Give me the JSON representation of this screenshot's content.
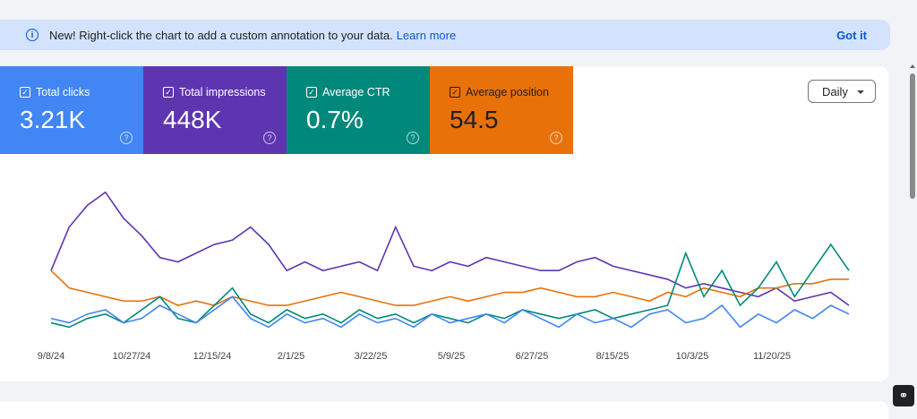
{
  "banner": {
    "icon": "info-icon",
    "text": "New! Right-click the chart to add a custom annotation to your data.",
    "link": "Learn more",
    "dismiss": "Got it"
  },
  "metrics": [
    {
      "label": "Total clicks",
      "value": "3.21K",
      "color": "#4285f4",
      "checked": true
    },
    {
      "label": "Total impressions",
      "value": "448K",
      "color": "#5e35b1",
      "checked": true
    },
    {
      "label": "Average CTR",
      "value": "0.7%",
      "color": "#00897b",
      "checked": true
    },
    {
      "label": "Average position",
      "value": "54.5",
      "color": "#e8710a",
      "checked": true
    }
  ],
  "granularity": {
    "selected": "Daily"
  },
  "chart_data": {
    "type": "line",
    "x_ticks": [
      "9/8/24",
      "10/27/24",
      "12/15/24",
      "2/1/25",
      "3/22/25",
      "5/9/25",
      "6/27/25",
      "8/15/25",
      "10/3/25",
      "11/20/25"
    ],
    "y_axis": "hidden (relative scale)",
    "ylim": [
      0,
      180
    ],
    "grid": false,
    "series": [
      {
        "name": "Total impressions",
        "color": "#5e35b1",
        "values": [
          80,
          130,
          155,
          170,
          140,
          120,
          95,
          90,
          100,
          110,
          115,
          130,
          110,
          80,
          90,
          80,
          85,
          90,
          80,
          130,
          85,
          80,
          90,
          85,
          95,
          90,
          85,
          80,
          80,
          90,
          95,
          85,
          80,
          75,
          70,
          60,
          65,
          60,
          55,
          50,
          60,
          45,
          50,
          55,
          40
        ]
      },
      {
        "name": "Average position",
        "color": "#e8710a",
        "values": [
          80,
          60,
          55,
          50,
          45,
          45,
          50,
          40,
          45,
          40,
          50,
          45,
          40,
          40,
          45,
          50,
          55,
          50,
          45,
          40,
          40,
          45,
          50,
          45,
          50,
          55,
          55,
          60,
          55,
          50,
          50,
          55,
          50,
          45,
          55,
          50,
          60,
          55,
          50,
          60,
          60,
          65,
          65,
          70,
          70
        ]
      },
      {
        "name": "Average CTR",
        "color": "#00897b",
        "values": [
          20,
          15,
          25,
          30,
          20,
          35,
          50,
          25,
          20,
          40,
          60,
          30,
          20,
          35,
          25,
          30,
          20,
          35,
          25,
          30,
          20,
          30,
          25,
          20,
          30,
          25,
          35,
          30,
          25,
          30,
          35,
          25,
          30,
          35,
          40,
          100,
          50,
          80,
          40,
          60,
          90,
          50,
          80,
          110,
          80
        ]
      },
      {
        "name": "Total clicks",
        "color": "#4285f4",
        "values": [
          25,
          20,
          30,
          35,
          20,
          25,
          40,
          30,
          20,
          35,
          50,
          25,
          15,
          30,
          20,
          25,
          15,
          30,
          20,
          25,
          15,
          30,
          20,
          25,
          30,
          20,
          35,
          25,
          15,
          30,
          20,
          25,
          15,
          30,
          35,
          20,
          25,
          40,
          15,
          30,
          20,
          35,
          25,
          40,
          30
        ]
      }
    ]
  }
}
